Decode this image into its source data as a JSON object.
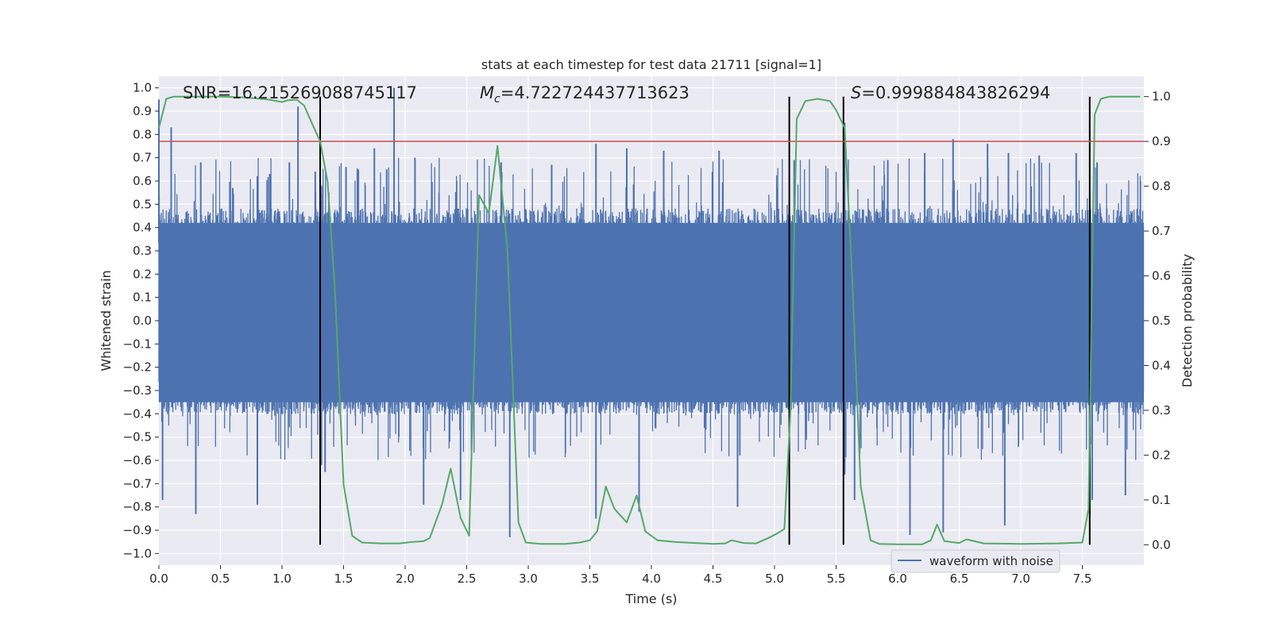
{
  "chart_data": {
    "type": "line",
    "title": "stats at each timestep for test data 21711 [signal=1]",
    "xlabel": "Time (s)",
    "ylabel": "Whitened strain",
    "y2label": "Detection probability",
    "xlim": [
      0.0,
      8.0
    ],
    "ylim": [
      -1.05,
      1.05
    ],
    "y2lim": [
      -0.0455,
      1.0455
    ],
    "xticks": [
      0.0,
      0.5,
      1.0,
      1.5,
      2.0,
      2.5,
      3.0,
      3.5,
      4.0,
      4.5,
      5.0,
      5.5,
      6.0,
      6.5,
      7.0,
      7.5
    ],
    "xtick_labels": [
      "0.0",
      "0.5",
      "1.0",
      "1.5",
      "2.0",
      "2.5",
      "3.0",
      "3.5",
      "4.0",
      "4.5",
      "5.0",
      "5.5",
      "6.0",
      "6.5",
      "7.0",
      "7.5"
    ],
    "yticks": [
      1.0,
      0.9,
      0.8,
      0.7,
      0.6,
      0.5,
      0.4,
      0.3,
      0.2,
      0.1,
      0.0,
      -0.1,
      -0.2,
      -0.3,
      -0.4,
      -0.5,
      -0.6,
      -0.7,
      -0.8,
      -0.9,
      -1.0
    ],
    "ytick_labels": [
      "1.0",
      "0.9",
      "0.8",
      "0.7",
      "0.6",
      "0.5",
      "0.4",
      "0.3",
      "0.2",
      "0.1",
      "0.0",
      "−0.1",
      "−0.2",
      "−0.3",
      "−0.4",
      "−0.5",
      "−0.6",
      "−0.7",
      "−0.8",
      "−0.9",
      "−1.0"
    ],
    "y2ticks": [
      1.0,
      0.9,
      0.8,
      0.7,
      0.6,
      0.5,
      0.4,
      0.3,
      0.2,
      0.1,
      0.0
    ],
    "y2tick_labels": [
      "1.0",
      "0.9",
      "0.8",
      "0.7",
      "0.6",
      "0.5",
      "0.4",
      "0.3",
      "0.2",
      "0.1",
      "0.0"
    ],
    "annotations": {
      "snr": "SNR=16.215269088745117",
      "mc_symbol": "M",
      "mc_subscript": "c",
      "mc_value": "=4.722724437713623",
      "s_symbol": "S",
      "s_value": "=0.999884843826294"
    },
    "threshold": {
      "value": 0.9,
      "axis": "right",
      "color": "#c44e52"
    },
    "vertical_lines": [
      1.31,
      5.12,
      5.56,
      7.56
    ],
    "waveform": {
      "name": "waveform with noise",
      "color": "#4c72b0",
      "core_band": [
        -0.35,
        0.42
      ],
      "peaks": [
        [
          0.0,
          0.95
        ],
        [
          0.03,
          -0.77
        ],
        [
          0.1,
          0.83
        ],
        [
          0.3,
          -0.83
        ],
        [
          0.34,
          0.68
        ],
        [
          0.6,
          0.57
        ],
        [
          0.8,
          0.62
        ],
        [
          0.8,
          -0.79
        ],
        [
          0.9,
          0.63
        ],
        [
          1.06,
          0.68
        ],
        [
          1.13,
          0.92
        ],
        [
          1.27,
          0.64
        ],
        [
          1.32,
          0.58
        ],
        [
          1.32,
          -0.62
        ],
        [
          1.35,
          -0.65
        ],
        [
          1.38,
          0.55
        ],
        [
          1.52,
          0.66
        ],
        [
          1.62,
          0.65
        ],
        [
          1.75,
          0.74
        ],
        [
          1.85,
          0.65
        ],
        [
          1.91,
          1.0
        ],
        [
          2.08,
          0.7
        ],
        [
          2.15,
          -0.79
        ],
        [
          2.45,
          -0.77
        ],
        [
          2.78,
          0.68
        ],
        [
          2.85,
          -0.93
        ],
        [
          3.19,
          0.67
        ],
        [
          3.55,
          0.76
        ],
        [
          3.55,
          -0.85
        ],
        [
          3.8,
          0.74
        ],
        [
          3.9,
          -0.82
        ],
        [
          4.1,
          0.73
        ],
        [
          4.55,
          0.73
        ],
        [
          4.7,
          -0.8
        ],
        [
          5.16,
          0.69
        ],
        [
          5.57,
          0.85
        ],
        [
          5.57,
          -0.66
        ],
        [
          5.65,
          -0.77
        ],
        [
          5.92,
          0.69
        ],
        [
          6.1,
          -0.92
        ],
        [
          6.22,
          0.72
        ],
        [
          6.37,
          -0.91
        ],
        [
          6.45,
          0.78
        ],
        [
          6.73,
          0.76
        ],
        [
          6.87,
          -0.88
        ],
        [
          6.9,
          0.72
        ],
        [
          7.15,
          0.71
        ],
        [
          7.45,
          0.72
        ],
        [
          7.56,
          -0.83
        ],
        [
          7.58,
          -0.77
        ],
        [
          7.62,
          0.68
        ],
        [
          7.85,
          -0.75
        ]
      ]
    },
    "probability": {
      "color": "#55a868",
      "x": [
        0.0,
        0.06,
        0.12,
        0.2,
        0.3,
        0.5,
        0.7,
        0.9,
        1.0,
        1.05,
        1.12,
        1.18,
        1.26,
        1.31,
        1.37,
        1.43,
        1.5,
        1.57,
        1.65,
        1.8,
        1.95,
        2.05,
        2.15,
        2.2,
        2.3,
        2.37,
        2.45,
        2.52,
        2.6,
        2.68,
        2.75,
        2.83,
        2.92,
        2.98,
        3.1,
        3.3,
        3.42,
        3.5,
        3.56,
        3.63,
        3.7,
        3.8,
        3.88,
        3.95,
        4.05,
        4.2,
        4.5,
        4.6,
        4.65,
        4.75,
        4.85,
        4.95,
        5.02,
        5.08,
        5.13,
        5.18,
        5.25,
        5.35,
        5.45,
        5.5,
        5.57,
        5.63,
        5.7,
        5.78,
        5.85,
        6.0,
        6.2,
        6.27,
        6.32,
        6.38,
        6.5,
        6.56,
        6.7,
        7.0,
        7.3,
        7.5,
        7.55,
        7.6,
        7.65,
        7.72,
        7.8,
        7.97
      ],
      "y": [
        0.93,
        0.995,
        1.0,
        1.0,
        1.0,
        1.0,
        0.998,
        0.993,
        0.988,
        0.992,
        0.993,
        0.98,
        0.93,
        0.9,
        0.81,
        0.57,
        0.135,
        0.02,
        0.005,
        0.003,
        0.003,
        0.006,
        0.008,
        0.015,
        0.09,
        0.17,
        0.06,
        0.02,
        0.78,
        0.74,
        0.89,
        0.66,
        0.05,
        0.005,
        0.002,
        0.002,
        0.005,
        0.01,
        0.03,
        0.13,
        0.08,
        0.05,
        0.11,
        0.03,
        0.01,
        0.006,
        0.002,
        0.003,
        0.01,
        0.004,
        0.003,
        0.015,
        0.025,
        0.035,
        0.3,
        0.95,
        0.99,
        0.995,
        0.99,
        0.97,
        0.93,
        0.6,
        0.13,
        0.01,
        0.002,
        0.001,
        0.001,
        0.01,
        0.045,
        0.008,
        0.004,
        0.012,
        0.003,
        0.002,
        0.003,
        0.005,
        0.08,
        0.96,
        0.995,
        1.0,
        1.0,
        1.0
      ]
    },
    "legend": {
      "label": "waveform with noise",
      "placement": "lower-right"
    },
    "grid": true
  }
}
